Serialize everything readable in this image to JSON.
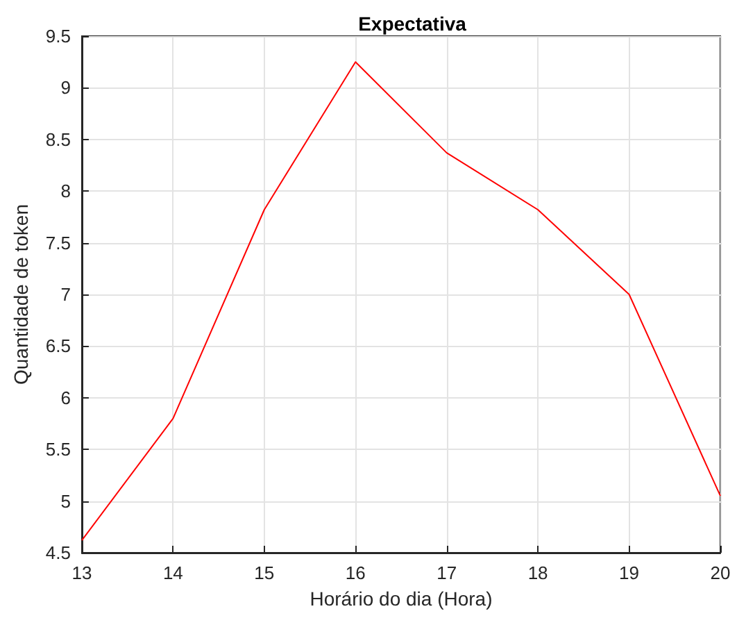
{
  "chart_data": {
    "type": "line",
    "title": "Expectativa",
    "xlabel": "Horário do dia (Hora)",
    "ylabel": "Quantidade de token",
    "x": [
      13,
      14,
      15,
      16,
      17,
      18,
      19,
      20
    ],
    "series": [
      {
        "color": "#ff0000",
        "values": [
          4.62,
          5.8,
          7.82,
          9.25,
          8.37,
          7.82,
          7.0,
          5.05
        ]
      }
    ],
    "xlim": [
      13,
      20
    ],
    "xticks": [
      13,
      14,
      15,
      16,
      17,
      18,
      19,
      20
    ],
    "ylim": [
      4.5,
      9.5
    ],
    "yticks": [
      4.5,
      5,
      5.5,
      6,
      6.5,
      7,
      7.5,
      8,
      8.5,
      9,
      9.5
    ],
    "grid": true,
    "marker": "none",
    "line_style": "solid"
  }
}
